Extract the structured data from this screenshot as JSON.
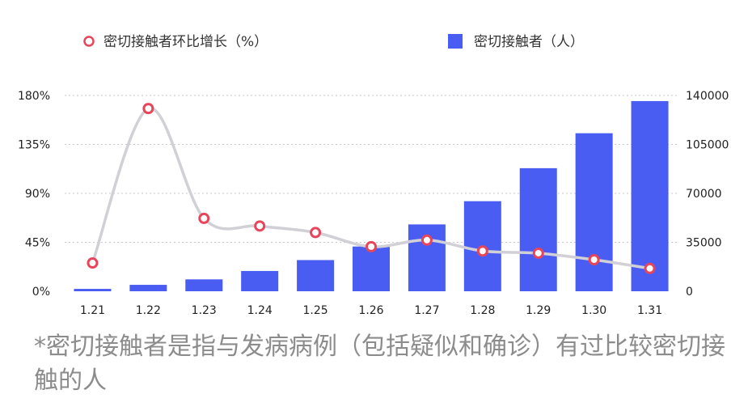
{
  "chart_data": {
    "type": "bar+line",
    "categories": [
      "1.21",
      "1.22",
      "1.23",
      "1.24",
      "1.25",
      "1.26",
      "1.27",
      "1.28",
      "1.29",
      "1.30",
      "1.31"
    ],
    "series": [
      {
        "name": "密切接触者环比增长（%）",
        "type": "line",
        "axis": "left",
        "values": [
          26,
          168,
          67,
          60,
          54,
          41,
          47,
          37,
          35,
          29,
          21
        ]
      },
      {
        "name": "密切接触者（人）",
        "type": "bar",
        "axis": "right",
        "values": [
          1700,
          4600,
          8500,
          14500,
          22300,
          32000,
          47800,
          64400,
          88000,
          113000,
          136000
        ]
      }
    ],
    "left_axis": {
      "ticks": [
        "0%",
        "45%",
        "90%",
        "135%",
        "180%"
      ],
      "range": [
        0,
        180
      ]
    },
    "right_axis": {
      "ticks": [
        "0",
        "35000",
        "70000",
        "105000",
        "140000"
      ],
      "range": [
        0,
        140000
      ]
    },
    "grid": "horizontal-dotted",
    "legend": "top",
    "colors": {
      "bar": "#4a5df2",
      "line": "#d0d0d6",
      "marker": "#e8455a"
    }
  },
  "footnote": "*密切接触者是指与发病病例（包括疑似和确诊）有过比较密切接触的人"
}
